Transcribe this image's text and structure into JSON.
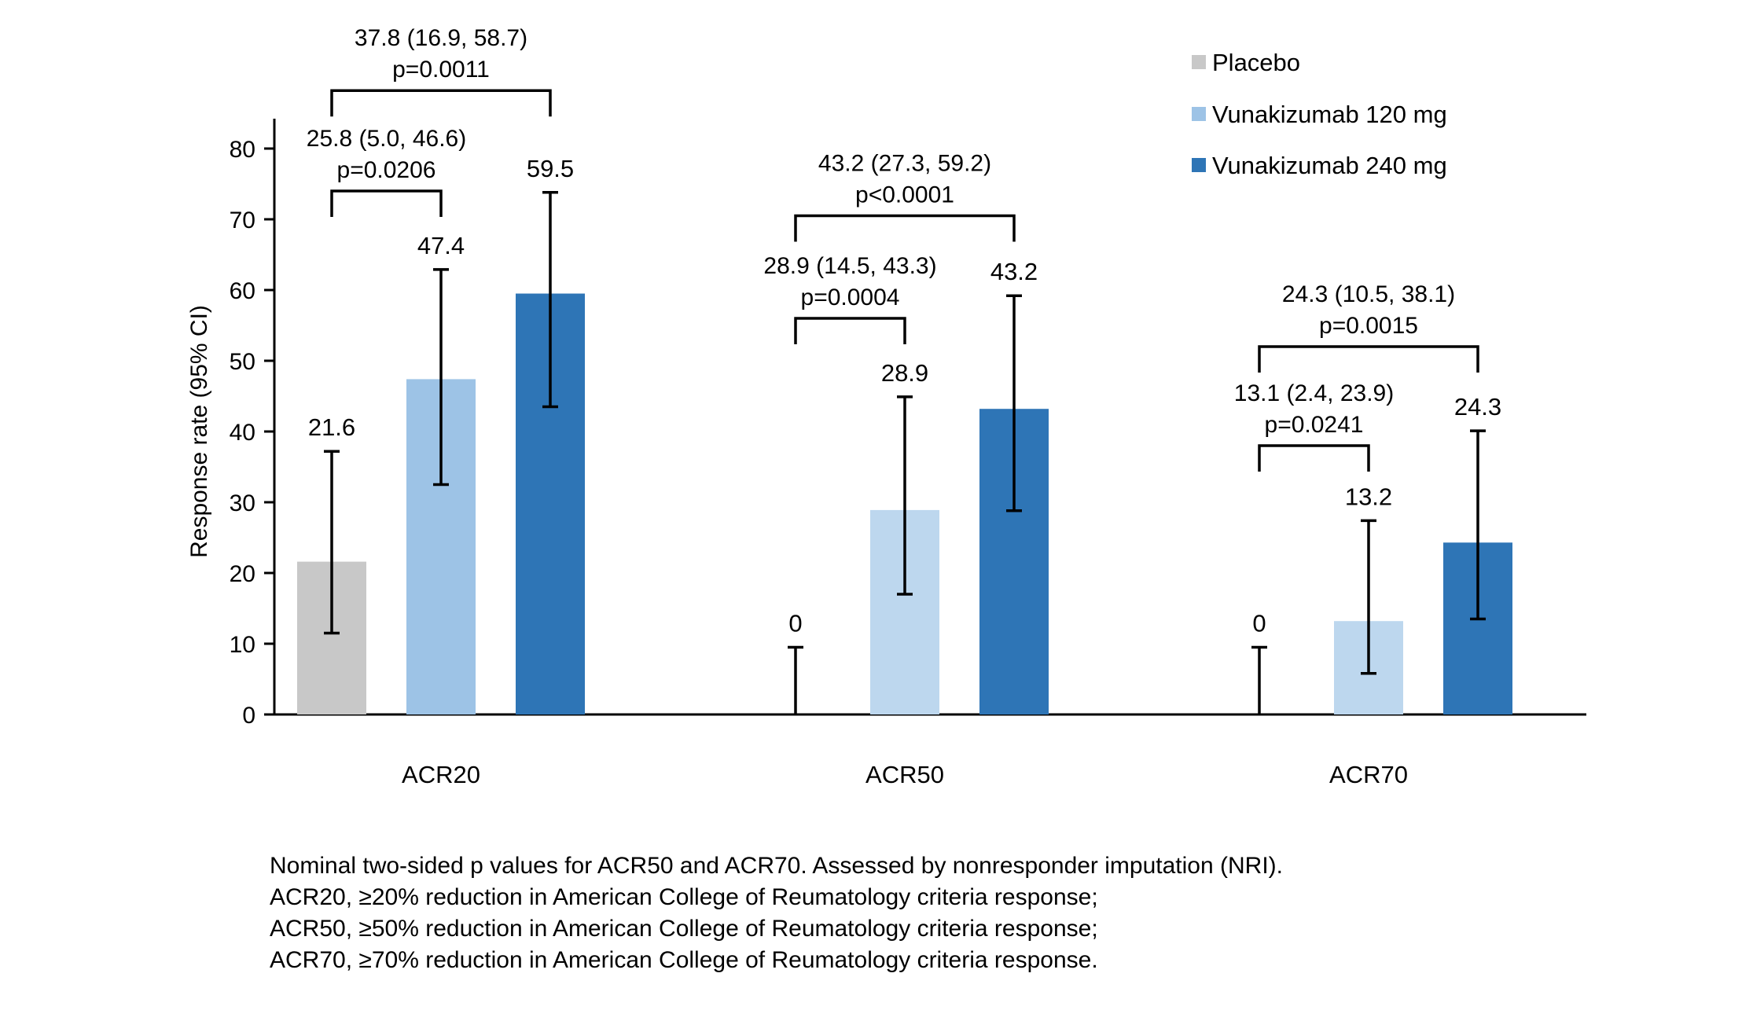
{
  "chart_data": {
    "type": "bar",
    "ylabel": "Response rate (95% CI)",
    "ylim": [
      0,
      80
    ],
    "yticks": [
      0,
      10,
      20,
      30,
      40,
      50,
      60,
      70,
      80
    ],
    "categories": [
      "ACR20",
      "ACR50",
      "ACR70"
    ],
    "legend_position": "top-right",
    "series": [
      {
        "name": "Placebo",
        "color": "#c8c8c8",
        "values": [
          21.6,
          0,
          0
        ],
        "labels": [
          "21.6",
          "0",
          "0"
        ],
        "ci_low": [
          11.5,
          0,
          0
        ],
        "ci_high": [
          37.2,
          9.5,
          9.5
        ]
      },
      {
        "name": "Vunakizumab 120 mg",
        "color_per_category": [
          "#9dc3e6",
          "#bdd7ee",
          "#bdd7ee"
        ],
        "values": [
          47.4,
          28.9,
          13.2
        ],
        "labels": [
          "47.4",
          "28.9",
          "13.2"
        ],
        "ci_low": [
          32.5,
          17.0,
          5.8
        ],
        "ci_high": [
          62.9,
          44.9,
          27.4
        ]
      },
      {
        "name": "Vunakizumab 240 mg",
        "color": "#2e75b6",
        "values": [
          59.5,
          43.2,
          24.3
        ],
        "labels": [
          "59.5",
          "43.2",
          "24.3"
        ],
        "ci_low": [
          43.5,
          28.8,
          13.5
        ],
        "ci_high": [
          73.8,
          59.2,
          40.1
        ]
      }
    ],
    "comparisons": [
      {
        "category": 0,
        "from_series": 0,
        "to_series": 2,
        "line1": "37.8 (16.9, 58.7)",
        "line2": "p=0.0011",
        "level": 88.2
      },
      {
        "category": 0,
        "from_series": 0,
        "to_series": 1,
        "line1": "25.8 (5.0, 46.6)",
        "line2": "p=0.0206",
        "level": 74.0
      },
      {
        "category": 1,
        "from_series": 0,
        "to_series": 2,
        "line1": "43.2 (27.3, 59.2)",
        "line2": "p<0.0001",
        "level": 70.5
      },
      {
        "category": 1,
        "from_series": 0,
        "to_series": 1,
        "line1": "28.9 (14.5, 43.3)",
        "line2": "p=0.0004",
        "level": 56.0
      },
      {
        "category": 2,
        "from_series": 0,
        "to_series": 2,
        "line1": "24.3 (10.5, 38.1)",
        "line2": "p=0.0015",
        "level": 52.0
      },
      {
        "category": 2,
        "from_series": 0,
        "to_series": 1,
        "line1": "13.1 (2.4, 23.9)",
        "line2": "p=0.0241",
        "level": 38.0
      }
    ]
  },
  "footnotes": [
    "Nominal two-sided p values for ACR50 and ACR70. Assessed by nonresponder imputation (NRI).",
    "ACR20, ≥20% reduction in American College of Reumatology criteria response;",
    "ACR50, ≥50% reduction in American College of Reumatology criteria response;",
    "ACR70, ≥70% reduction in American College of Reumatology criteria response."
  ]
}
